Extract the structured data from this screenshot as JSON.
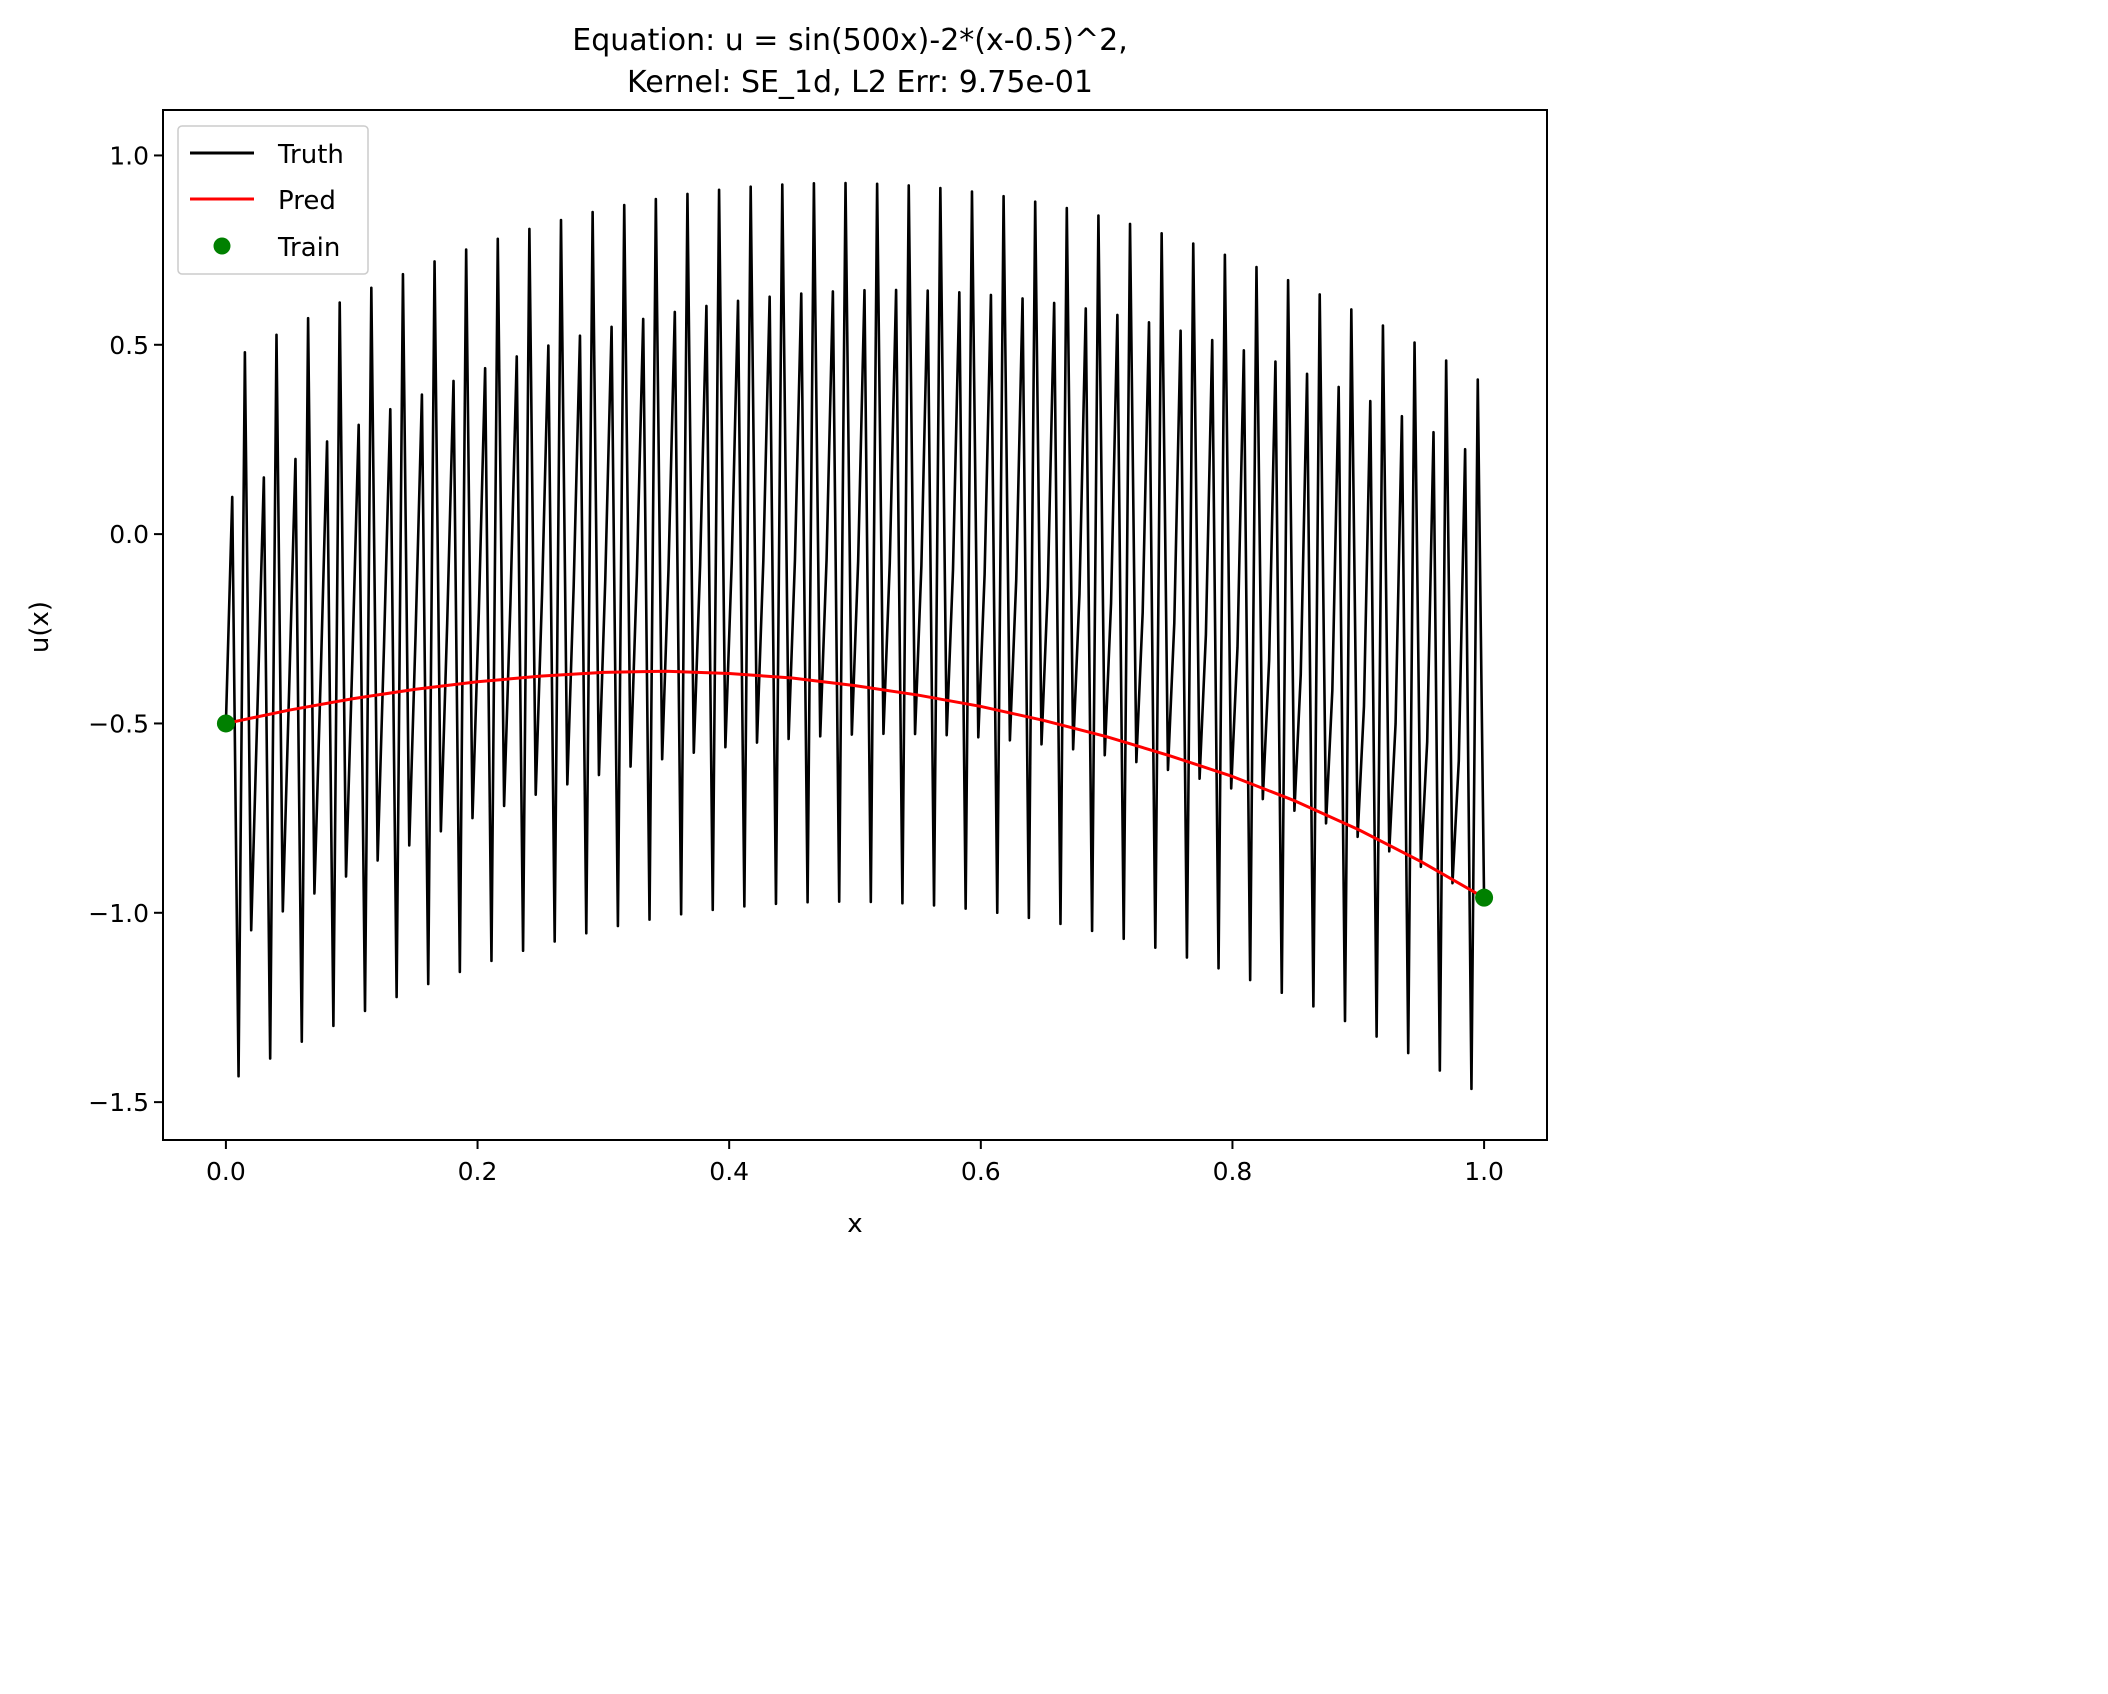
{
  "chart_data": {
    "type": "line",
    "title_line1": "Equation: u = sin(500x)-2*(x-0.5)^2,",
    "title_line2": "Kernel: SE_1d,   L2 Err: 9.75e-01",
    "xlabel": "x",
    "ylabel": "u(x)",
    "xlim": [
      -0.05,
      1.05
    ],
    "ylim": [
      -1.6,
      1.12
    ],
    "xticks": [
      0.0,
      0.2,
      0.4,
      0.6,
      0.8,
      1.0
    ],
    "xtick_labels": [
      "0.0",
      "0.2",
      "0.4",
      "0.6",
      "0.8",
      "1.0"
    ],
    "yticks": [
      -1.5,
      -1.0,
      -0.5,
      0.0,
      0.5,
      1.0
    ],
    "ytick_labels": [
      "−1.5",
      "−1.0",
      "−0.5",
      "0.0",
      "0.5",
      "1.0"
    ],
    "legend_position": "top-left",
    "truth": {
      "name": "Truth",
      "color": "#000000",
      "equation": "sin(500x)-2*(x-0.5)^2",
      "x_range": [
        0.0,
        1.0
      ],
      "num_points": 200
    },
    "pred": {
      "name": "Pred",
      "color": "#ff0000",
      "x": [
        0.0,
        0.05,
        0.1,
        0.15,
        0.2,
        0.25,
        0.3,
        0.35,
        0.4,
        0.45,
        0.5,
        0.55,
        0.6,
        0.65,
        0.7,
        0.75,
        0.8,
        0.85,
        0.9,
        0.95,
        1.0
      ],
      "y": [
        -0.5,
        -0.465,
        -0.435,
        -0.41,
        -0.39,
        -0.375,
        -0.365,
        -0.362,
        -0.368,
        -0.38,
        -0.4,
        -0.425,
        -0.455,
        -0.492,
        -0.535,
        -0.585,
        -0.64,
        -0.705,
        -0.78,
        -0.865,
        -0.96
      ]
    },
    "train": {
      "name": "Train",
      "color": "#008000",
      "x": [
        0.0,
        1.0
      ],
      "y": [
        -0.5,
        -0.96
      ]
    }
  }
}
